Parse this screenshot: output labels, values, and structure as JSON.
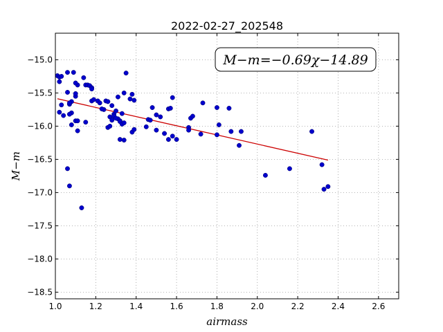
{
  "chart_data": {
    "type": "scatter",
    "title": "2022-02-27_202548",
    "xlabel": "airmass",
    "ylabel": "M−m",
    "xlim": [
      1.0,
      2.7
    ],
    "ylim": [
      -18.6,
      -14.6
    ],
    "y_inverted": true,
    "grid": true,
    "xticks": [
      "1.0",
      "1.2",
      "1.4",
      "1.6",
      "1.8",
      "2.0",
      "2.2",
      "2.4",
      "2.6"
    ],
    "yticks": [
      "−15.0",
      "−15.5",
      "−16.0",
      "−16.5",
      "−17.0",
      "−17.5",
      "−18.0",
      "−18.5"
    ],
    "annotation": "M−m=−0.69χ−14.89",
    "colors": {
      "points": "#0000cc",
      "fit_line": "#cc0000",
      "grid": "#999999"
    },
    "fit_line": {
      "slope": -0.69,
      "intercept": -14.89,
      "x_range": [
        1.01,
        2.35
      ]
    },
    "series": [
      {
        "x": [
          1.01,
          1.02,
          1.03,
          1.02,
          1.03,
          1.06,
          1.09,
          1.1,
          1.11,
          1.1,
          1.14,
          1.15,
          1.16,
          1.17,
          1.18,
          1.18,
          1.35,
          1.1,
          1.06,
          1.07,
          1.08,
          1.07,
          1.08,
          1.1,
          1.11,
          1.02,
          1.04,
          1.07,
          1.08,
          1.11,
          1.15,
          1.18,
          1.19,
          1.21,
          1.24,
          1.25,
          1.26,
          1.27,
          1.28,
          1.29,
          1.3,
          1.31,
          1.32,
          1.33,
          1.34,
          1.31,
          1.32,
          1.33,
          1.37,
          1.38,
          1.39,
          1.34,
          1.38,
          1.39,
          1.45,
          1.46,
          1.48,
          1.5,
          1.52,
          1.56,
          1.57,
          1.58,
          1.47,
          1.5,
          1.54,
          1.56,
          1.58,
          1.6,
          1.66,
          1.67,
          1.68,
          1.66,
          1.73,
          1.72,
          1.8,
          1.81,
          1.8,
          1.86,
          1.87,
          1.91,
          1.92,
          2.04,
          2.16,
          2.27,
          2.32,
          2.33,
          2.35,
          1.07,
          1.06,
          1.13,
          1.22,
          1.23,
          1.26,
          1.27,
          1.28,
          1.29,
          1.3,
          1.32,
          1.34
        ],
        "y": [
          -15.24,
          -15.26,
          -15.25,
          -15.33,
          -15.68,
          -15.19,
          -15.19,
          -15.55,
          -15.38,
          -15.35,
          -15.27,
          -15.38,
          -15.38,
          -15.39,
          -15.42,
          -15.44,
          -15.2,
          -15.51,
          -15.49,
          -15.67,
          -15.63,
          -15.65,
          -15.8,
          -15.92,
          -16.07,
          -15.79,
          -15.84,
          -15.82,
          -15.98,
          -15.92,
          -15.94,
          -15.62,
          -15.6,
          -15.62,
          -15.75,
          -15.62,
          -15.63,
          -15.86,
          -15.69,
          -15.82,
          -15.77,
          -15.56,
          -15.92,
          -15.81,
          -15.5,
          -15.89,
          -15.93,
          -15.97,
          -15.59,
          -15.52,
          -15.61,
          -15.95,
          -16.09,
          -16.05,
          -16.01,
          -15.9,
          -15.72,
          -15.83,
          -15.86,
          -15.74,
          -15.73,
          -15.57,
          -15.91,
          -16.06,
          -16.11,
          -16.2,
          -16.15,
          -16.2,
          -16.02,
          -15.88,
          -15.85,
          -16.06,
          -15.65,
          -16.12,
          -15.72,
          -15.98,
          -16.13,
          -15.73,
          -16.08,
          -16.29,
          -16.08,
          -16.74,
          -16.64,
          -16.08,
          -16.58,
          -16.95,
          -16.91,
          -16.9,
          -16.64,
          -17.23,
          -15.65,
          -15.74,
          -16.02,
          -16.0,
          -15.91,
          -15.85,
          -15.88,
          -16.2,
          -16.21
        ]
      }
    ]
  }
}
